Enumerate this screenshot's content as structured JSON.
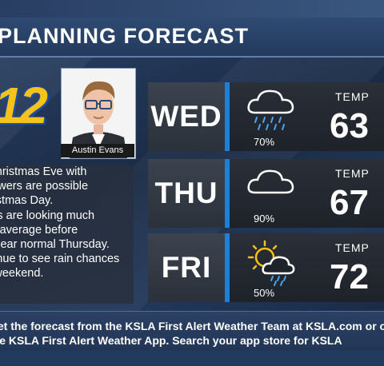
{
  "header": {
    "title": "PLANNING FORECAST"
  },
  "station": {
    "logo_text": "12"
  },
  "presenter": {
    "name": "Austin Evans"
  },
  "summary": {
    "text": "Cloudy on Christmas Eve with lingering showers are possible through Christmas Day. Temperatures are looking much warmer than average before returning to near normal Thursday. We will continue to see rain chances through the weekend."
  },
  "forecast": {
    "temp_label": "TEMP",
    "days": [
      {
        "day": "WED",
        "condition": "cloud-rain-icon",
        "precip": "70%",
        "temp": "63"
      },
      {
        "day": "THU",
        "condition": "cloud-icon",
        "precip": "90%",
        "temp": "67"
      },
      {
        "day": "FRI",
        "condition": "sun-cloud-rain-icon",
        "precip": "50%",
        "temp": "72"
      }
    ]
  },
  "ticker": {
    "line1": "Get the forecast from the KSLA First Alert Weather Team at KSLA.com or on",
    "line2": "the KSLA First Alert Weather App. Search your app store for KSLA"
  },
  "colors": {
    "accent": "#1c80d8",
    "logo_yellow": "#f7c21a",
    "logo_blue": "#1a4fa3"
  }
}
